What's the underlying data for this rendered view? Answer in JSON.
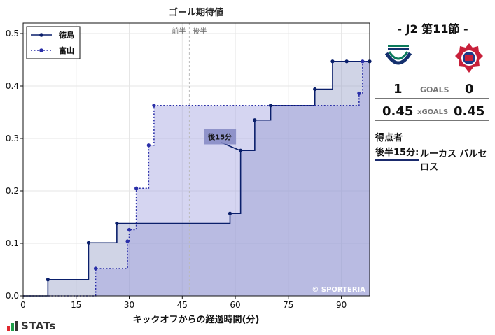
{
  "chart_data": {
    "type": "line",
    "title": "ゴール期待値",
    "xlabel": "キックオフからの経過時間(分)",
    "ylabel": "",
    "xlim": [
      0,
      98
    ],
    "ylim": [
      0,
      0.52
    ],
    "xticks": [
      0,
      15,
      30,
      45,
      60,
      75,
      90
    ],
    "yticks": [
      0.0,
      0.1,
      0.2,
      0.3,
      0.4,
      0.5
    ],
    "grid": true,
    "legend_position": "top-left",
    "half_labels": {
      "first": "前半",
      "second": "後半",
      "x": 47
    },
    "series": [
      {
        "name": "徳島",
        "style": "solid",
        "color": "#0a1f6b",
        "points": [
          [
            7,
            0.031
          ],
          [
            18.5,
            0.101
          ],
          [
            26.5,
            0.138
          ],
          [
            58.5,
            0.157
          ],
          [
            61.5,
            0.277
          ],
          [
            65.5,
            0.335
          ],
          [
            70,
            0.363
          ],
          [
            82.5,
            0.394
          ],
          [
            87.5,
            0.447
          ],
          [
            91.5,
            0.447
          ],
          [
            98,
            0.447
          ]
        ]
      },
      {
        "name": "富山",
        "style": "dotted",
        "color": "#2a2fa8",
        "points": [
          [
            20.5,
            0.052
          ],
          [
            29.5,
            0.104
          ],
          [
            30,
            0.126
          ],
          [
            32,
            0.205
          ],
          [
            35.5,
            0.287
          ],
          [
            37,
            0.363
          ],
          [
            95,
            0.386
          ],
          [
            96,
            0.447
          ]
        ]
      }
    ],
    "annotations": [
      {
        "label": "後15分",
        "x": 61,
        "y": 0.278
      }
    ],
    "copyright": "© SPORTERIA"
  },
  "match": {
    "title": "-  J2 第11節  -",
    "home_score": "1",
    "away_score": "0",
    "goals_label": "GOALS",
    "home_xg": "0.45",
    "away_xg": "0.45",
    "xg_label": "xGOALS",
    "home_crest_text": "TOKUSHIMA VORTIS",
    "home_color": "#0a7a5a",
    "away_color": "#c8203a"
  },
  "scorers": {
    "title": "得点者",
    "items": [
      {
        "time": "後半15分:",
        "name": "ルーカス バルセロス"
      }
    ]
  },
  "footer": {
    "logo_text": "STATs"
  }
}
